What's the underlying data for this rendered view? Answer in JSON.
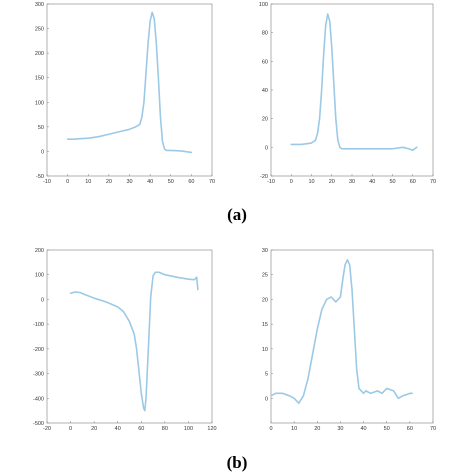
{
  "panel_labels": [
    "(a)",
    "(b)"
  ],
  "line_color": "#9cc9e6",
  "chart_data": [
    {
      "type": "line",
      "xlim": [
        -10,
        70
      ],
      "ylim": [
        -50,
        300
      ],
      "xticks": [
        -10,
        0,
        10,
        20,
        30,
        40,
        50,
        60,
        70
      ],
      "yticks": [
        -50,
        0,
        50,
        100,
        150,
        200,
        250,
        300
      ],
      "grid": false,
      "series": [
        {
          "x": [
            0,
            3,
            6,
            10,
            15,
            20,
            25,
            30,
            33,
            35,
            36,
            37,
            38,
            39,
            40,
            41,
            42,
            43,
            44,
            45,
            46,
            47,
            48,
            50,
            55,
            60
          ],
          "y": [
            25,
            25,
            26,
            27,
            30,
            35,
            40,
            45,
            50,
            55,
            70,
            100,
            160,
            220,
            265,
            283,
            270,
            220,
            150,
            70,
            20,
            5,
            2,
            2,
            1,
            -2
          ]
        }
      ]
    },
    {
      "type": "line",
      "xlim": [
        -10,
        70
      ],
      "ylim": [
        -20,
        100
      ],
      "xticks": [
        -10,
        0,
        10,
        20,
        30,
        40,
        50,
        60,
        70
      ],
      "yticks": [
        -20,
        0,
        20,
        40,
        60,
        80,
        100
      ],
      "grid": false,
      "series": [
        {
          "x": [
            0,
            5,
            10,
            12,
            13,
            14,
            15,
            16,
            17,
            18,
            19,
            20,
            21,
            22,
            23,
            24,
            25,
            27,
            30,
            35,
            40,
            45,
            50,
            55,
            58,
            60,
            62
          ],
          "y": [
            2,
            2,
            3,
            5,
            10,
            20,
            40,
            65,
            85,
            93,
            88,
            70,
            45,
            20,
            5,
            0,
            -1,
            -1,
            -1,
            -1,
            -1,
            -1,
            -1,
            0,
            -1,
            -2,
            0
          ]
        }
      ]
    },
    {
      "type": "line",
      "xlim": [
        -20,
        120
      ],
      "ylim": [
        -500,
        200
      ],
      "xticks": [
        -20,
        0,
        20,
        40,
        60,
        80,
        100,
        120
      ],
      "yticks": [
        -500,
        -400,
        -300,
        -200,
        -100,
        0,
        100,
        200
      ],
      "grid": false,
      "series": [
        {
          "x": [
            0,
            4,
            8,
            12,
            20,
            30,
            40,
            45,
            50,
            54,
            56,
            58,
            60,
            62,
            63,
            64,
            66,
            68,
            70,
            72,
            75,
            80,
            90,
            100,
            105,
            107,
            108
          ],
          "y": [
            25,
            30,
            28,
            20,
            5,
            -10,
            -30,
            -50,
            -90,
            -140,
            -200,
            -290,
            -380,
            -440,
            -450,
            -400,
            -200,
            10,
            95,
            110,
            110,
            100,
            90,
            82,
            80,
            90,
            40
          ]
        }
      ]
    },
    {
      "type": "line",
      "xlim": [
        0,
        70
      ],
      "ylim": [
        -5,
        30
      ],
      "xticks": [
        0,
        10,
        20,
        30,
        40,
        50,
        60,
        70
      ],
      "yticks": [
        0,
        5,
        10,
        15,
        20,
        25,
        30
      ],
      "grid": false,
      "series": [
        {
          "x": [
            0,
            2,
            5,
            8,
            10,
            12,
            14,
            16,
            18,
            20,
            22,
            24,
            26,
            28,
            30,
            31,
            32,
            33,
            34,
            35,
            36,
            37,
            38,
            40,
            41,
            43,
            46,
            48,
            50,
            53,
            55,
            57,
            60,
            61
          ],
          "y": [
            0.5,
            1,
            1,
            0.5,
            0,
            -1,
            0.5,
            4,
            9,
            14,
            18,
            20,
            20.5,
            19.5,
            20.5,
            24,
            27,
            28,
            27,
            22,
            14,
            6,
            2,
            1,
            1.5,
            1,
            1.5,
            1,
            2,
            1.5,
            0,
            0.5,
            1,
            1
          ]
        }
      ]
    }
  ]
}
